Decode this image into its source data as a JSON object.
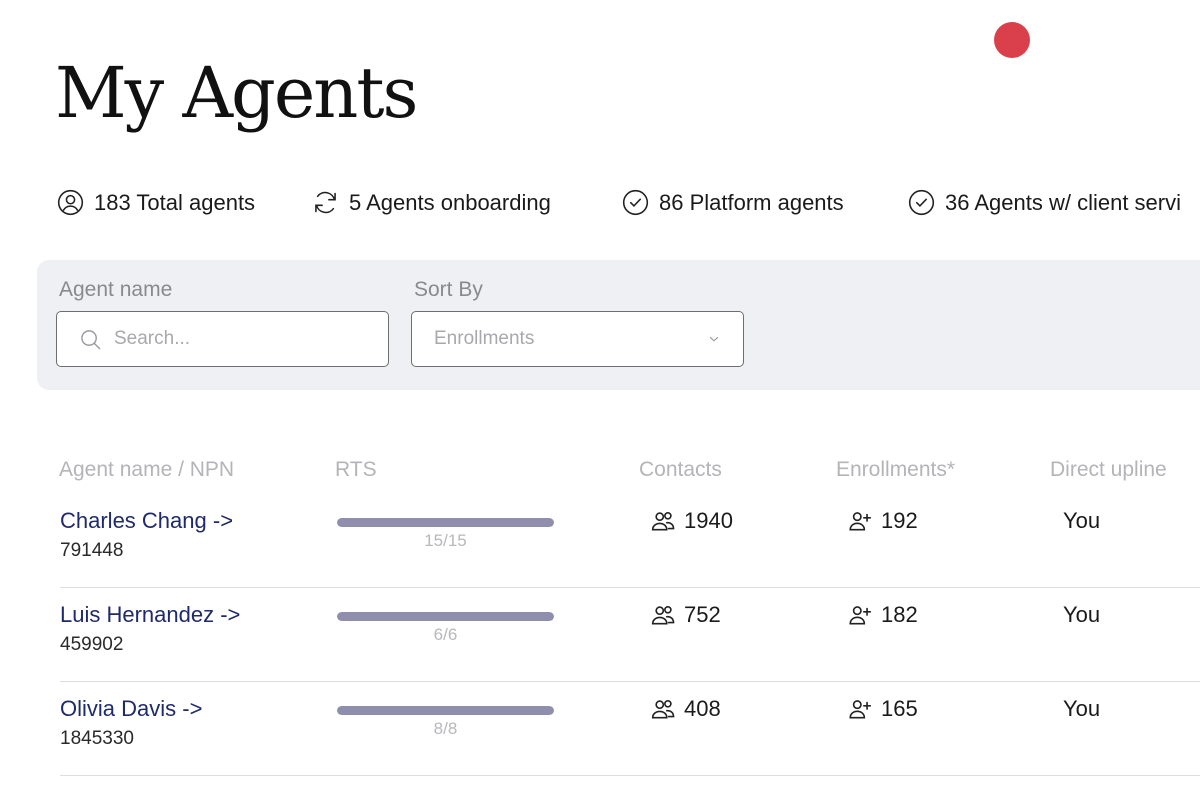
{
  "page": {
    "title": "My Agents"
  },
  "stats": [
    {
      "icon": "user-circle-icon",
      "text": "183 Total agents"
    },
    {
      "icon": "refresh-icon",
      "text": "5 Agents onboarding"
    },
    {
      "icon": "check-circle-icon",
      "text": "86 Platform agents"
    },
    {
      "icon": "check-circle-icon",
      "text": "36 Agents w/ client servi"
    }
  ],
  "filters": {
    "agent_name_label": "Agent name",
    "search_placeholder": "Search...",
    "sort_label": "Sort By",
    "sort_value": "Enrollments"
  },
  "table": {
    "columns": [
      "Agent name / NPN",
      "RTS",
      "Contacts",
      "Enrollments*",
      "Direct upline"
    ],
    "rows": [
      {
        "name": "Charles Chang ->",
        "npn": "791448",
        "rts_label": "15/15",
        "rts_fraction": 1.0,
        "contacts": "1940",
        "enrollments": "192",
        "upline": "You"
      },
      {
        "name": "Luis Hernandez ->",
        "npn": "459902",
        "rts_label": "6/6",
        "rts_fraction": 1.0,
        "contacts": "752",
        "enrollments": "182",
        "upline": "You"
      },
      {
        "name": "Olivia Davis ->",
        "npn": "1845330",
        "rts_label": "8/8",
        "rts_fraction": 1.0,
        "contacts": "408",
        "enrollments": "165",
        "upline": "You"
      }
    ]
  },
  "colors": {
    "notification_dot": "#d9404b",
    "agent_link": "#1f2a6b",
    "rts_fill": "#8f8fad",
    "panel_bg": "#eff0f3"
  }
}
